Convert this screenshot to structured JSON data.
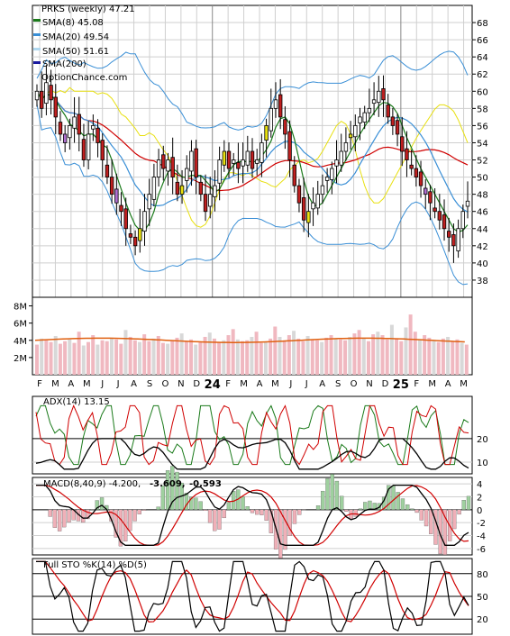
{
  "chart_data": [
    {
      "type": "candlestick",
      "title": "PRKS (weekly) 47.21",
      "watermark": "OptionChance.com",
      "legend": [
        {
          "label": "SMA(8) 45.08",
          "color": "#1a7a1a"
        },
        {
          "label": "SMA(20) 49.54",
          "color": "#3a8fd6"
        },
        {
          "label": "SMA(50) 51.61",
          "color": "#b0d8f0"
        },
        {
          "label": "SMA(200)",
          "color": "#1a1aa0"
        }
      ],
      "ylim": [
        36,
        70
      ],
      "y_ticks": [
        "68",
        "66",
        "64",
        "62",
        "60",
        "58",
        "56",
        "54",
        "52",
        "50",
        "48",
        "46",
        "44",
        "42",
        "40",
        "38"
      ],
      "x_ticks": [
        "F",
        "M",
        "A",
        "M",
        "J",
        "J",
        "A",
        "S",
        "O",
        "N",
        "D",
        "24",
        "F",
        "M",
        "A",
        "M",
        "J",
        "J",
        "A",
        "S",
        "O",
        "N",
        "D",
        "25",
        "F",
        "M",
        "A",
        "M"
      ],
      "closes": [
        60,
        58,
        61,
        59,
        57,
        55,
        54,
        56,
        57,
        55,
        52,
        55,
        56,
        54,
        52,
        50,
        48,
        47,
        46,
        44,
        43,
        42,
        44,
        46,
        48,
        50,
        52,
        51,
        52,
        50,
        48,
        49,
        51,
        53,
        50,
        48,
        46,
        48,
        49,
        52,
        53,
        51,
        52,
        51,
        52,
        53,
        51,
        52,
        54,
        56,
        58,
        59,
        57,
        55,
        52,
        49,
        47,
        45,
        46,
        47,
        48,
        49,
        50,
        51,
        52,
        53,
        54,
        55,
        56,
        57,
        57.5,
        58,
        59,
        60,
        59,
        57,
        56,
        55,
        53,
        52,
        51,
        50,
        49,
        48,
        47,
        46,
        45,
        44,
        43,
        42,
        44,
        46,
        47.2
      ],
      "sma8_last": 45.08,
      "sma20_last": 49.54,
      "sma50_last": 51.61
    },
    {
      "type": "bar",
      "name": "Volume",
      "y_ticks": [
        "8M",
        "6M",
        "4M",
        "2M"
      ],
      "ylim": [
        0,
        9
      ],
      "values_millions": [
        3.5,
        4.2,
        4.0,
        3.8,
        4.5,
        3.6,
        3.9,
        4.1,
        3.7,
        5.0,
        3.4,
        3.8,
        4.6,
        3.5,
        4.0,
        3.9,
        4.3,
        4.1,
        3.6,
        5.2,
        4.4,
        4.0,
        3.8,
        4.7,
        3.9,
        4.2,
        4.5,
        3.7,
        3.6,
        4.0,
        4.3,
        4.8,
        3.9,
        4.1,
        3.5,
        3.8,
        4.4,
        4.9,
        4.2,
        3.8,
        4.0,
        4.6,
        5.3,
        4.1,
        3.9,
        4.0,
        4.4,
        5.0,
        3.7,
        3.8,
        4.2,
        5.6,
        4.4,
        4.0,
        4.6,
        5.1,
        4.2,
        3.9,
        4.5,
        4.1,
        4.0,
        3.8,
        4.3,
        4.6,
        4.2,
        4.1,
        4.0,
        4.4,
        4.8,
        5.2,
        4.3,
        3.9,
        4.7,
        5.0,
        4.6,
        4.1,
        5.8,
        4.2,
        3.9,
        5.5,
        7.0,
        5.0,
        4.1,
        4.6,
        4.3,
        4.0,
        3.8,
        4.2,
        4.4,
        3.9,
        4.1,
        3.7,
        3.5
      ],
      "avg_level_millions": 4.0
    },
    {
      "type": "line",
      "name": "ADX",
      "title": "ADX(14) 13.15",
      "y_ticks": [
        "20",
        "10"
      ],
      "ylim": [
        5,
        38
      ]
    },
    {
      "type": "line",
      "name": "MACD",
      "title": "MACD(8,40,9) -4.200,",
      "values_labels": [
        {
          "text": "-3.609,",
          "color": "#d00000"
        },
        {
          "text": "-0.593",
          "color": "#1a5fd6"
        }
      ],
      "y_ticks": [
        "4",
        "2",
        "0",
        "-2",
        "-4",
        "-6"
      ],
      "ylim": [
        -7,
        5
      ]
    },
    {
      "type": "line",
      "name": "Full STO",
      "title": "Full STO %K(14) %D(5)",
      "y_ticks": [
        "80",
        "50",
        "20"
      ],
      "ylim": [
        0,
        100
      ]
    }
  ]
}
